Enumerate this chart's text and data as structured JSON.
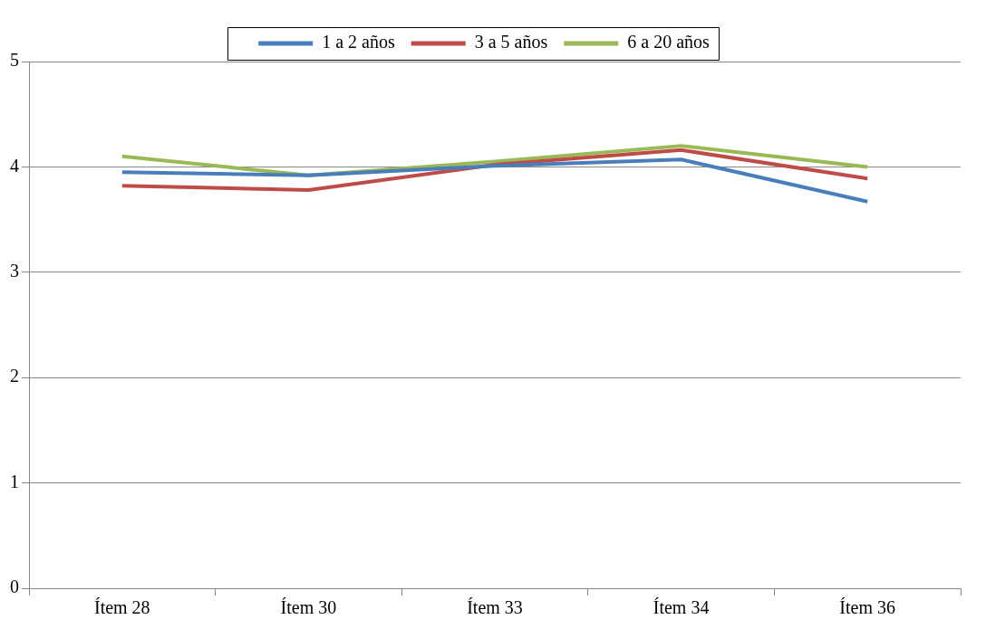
{
  "chart_data": {
    "type": "line",
    "categories": [
      "Ítem 28",
      "Ítem 30",
      "Ítem 33",
      "Ítem 34",
      "Ítem 36"
    ],
    "series": [
      {
        "name": "1 a 2 años",
        "color": "#4a7ebb",
        "values": [
          3.95,
          3.92,
          4.01,
          4.07,
          3.67
        ]
      },
      {
        "name": "3 a 5 años",
        "color": "#be4b48",
        "values": [
          3.82,
          3.78,
          4.02,
          4.16,
          3.89
        ]
      },
      {
        "name": "6 a 20 años",
        "color": "#98b954",
        "values": [
          4.1,
          3.92,
          4.05,
          4.2,
          4.0
        ]
      }
    ],
    "ylim": [
      0,
      5
    ],
    "yticks": [
      0,
      1,
      2,
      3,
      4,
      5
    ],
    "grid": "y",
    "legend": "top",
    "marker": "none",
    "line_style": "solid"
  }
}
